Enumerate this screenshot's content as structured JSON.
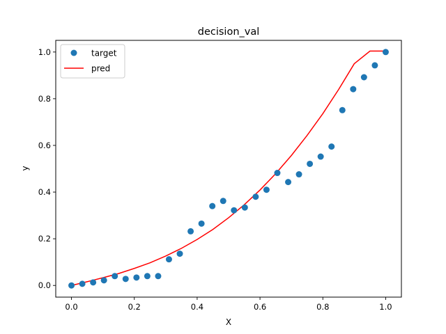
{
  "chart_data": {
    "type": "scatter",
    "title": "decision_val",
    "xlabel": "X",
    "ylabel": "y",
    "xlim": [
      -0.05,
      1.05
    ],
    "ylim": [
      -0.05,
      1.05
    ],
    "xticks": [
      0.0,
      0.2,
      0.4,
      0.6,
      0.8,
      1.0
    ],
    "yticks": [
      0.0,
      0.2,
      0.4,
      0.6,
      0.8,
      1.0
    ],
    "xtick_labels": [
      "0.0",
      "0.2",
      "0.4",
      "0.6",
      "0.8",
      "1.0"
    ],
    "ytick_labels": [
      "0.0",
      "0.2",
      "0.4",
      "0.6",
      "0.8",
      "1.0"
    ],
    "grid": false,
    "legend_position": "top-left",
    "series": [
      {
        "name": "target",
        "kind": "scatter",
        "color": "#1f77b4",
        "x": [
          0.0,
          0.0345,
          0.069,
          0.1034,
          0.1379,
          0.1724,
          0.2069,
          0.2414,
          0.2759,
          0.3103,
          0.3448,
          0.3793,
          0.4138,
          0.4483,
          0.4828,
          0.5172,
          0.5517,
          0.5862,
          0.6207,
          0.6552,
          0.6897,
          0.7241,
          0.7586,
          0.7931,
          0.8276,
          0.8621,
          0.8966,
          0.931,
          0.9655,
          1.0
        ],
        "y": [
          0.0,
          0.007,
          0.013,
          0.022,
          0.04,
          0.028,
          0.034,
          0.04,
          0.04,
          0.112,
          0.136,
          0.232,
          0.265,
          0.34,
          0.362,
          0.322,
          0.334,
          0.38,
          0.41,
          0.482,
          0.443,
          0.476,
          0.521,
          0.552,
          0.595,
          0.751,
          0.841,
          0.892,
          0.943,
          1.0
        ]
      },
      {
        "name": "pred",
        "kind": "line",
        "color": "#ff0000",
        "x": [
          0.0,
          0.05,
          0.1,
          0.15,
          0.2,
          0.25,
          0.3,
          0.35,
          0.4,
          0.45,
          0.5,
          0.55,
          0.6,
          0.65,
          0.7,
          0.75,
          0.8,
          0.85,
          0.9,
          0.95,
          1.0
        ],
        "y": [
          0.0,
          0.016,
          0.033,
          0.051,
          0.073,
          0.097,
          0.126,
          0.159,
          0.197,
          0.24,
          0.29,
          0.346,
          0.409,
          0.479,
          0.557,
          0.643,
          0.736,
          0.839,
          0.95,
          1.004,
          1.004
        ]
      }
    ]
  }
}
